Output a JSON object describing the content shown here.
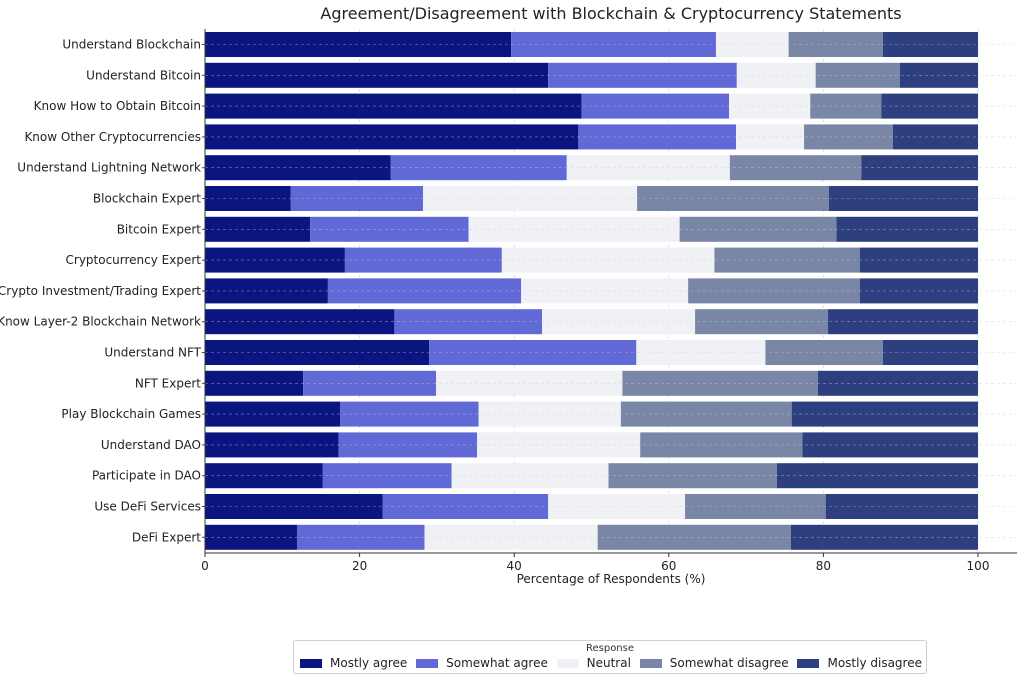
{
  "chart_data": {
    "type": "bar",
    "orientation": "horizontal",
    "stacked": true,
    "title": "Agreement/Disagreement with Blockchain & Cryptocurrency Statements",
    "xlabel": "Percentage of Respondents (%)",
    "ylabel": "",
    "xlim": [
      0,
      100
    ],
    "xticks": [
      0,
      20,
      40,
      60,
      80,
      100
    ],
    "grid": true,
    "legend_title": "Response",
    "legend_position": "bottom",
    "categories": [
      "Understand Blockchain",
      "Understand Bitcoin",
      "Know How to Obtain Bitcoin",
      "Know Other Cryptocurrencies",
      "Understand Lightning Network",
      "Blockchain Expert",
      "Bitcoin Expert",
      "Cryptocurrency Expert",
      "Crypto Investment/Trading Expert",
      "Know Layer-2 Blockchain Network",
      "Understand NFT",
      "NFT Expert",
      "Play Blockchain Games",
      "Understand DAO",
      "Participate in DAO",
      "Use DeFi Services",
      "DeFi Expert"
    ],
    "series": [
      {
        "name": "Mostly agree",
        "color": "#0a1580",
        "values": [
          39.6,
          44.4,
          48.7,
          48.3,
          24.0,
          11.1,
          13.6,
          18.1,
          15.9,
          24.5,
          29.0,
          12.7,
          17.5,
          17.3,
          15.2,
          23.0,
          11.9
        ]
      },
      {
        "name": "Somewhat agree",
        "color": "#6069d6",
        "values": [
          26.5,
          24.4,
          19.1,
          20.4,
          22.8,
          17.1,
          20.5,
          20.3,
          25.0,
          19.1,
          26.8,
          17.2,
          17.9,
          17.9,
          16.7,
          21.4,
          16.5
        ]
      },
      {
        "name": "Neutral",
        "color": "#f0f1f4",
        "values": [
          9.4,
          10.2,
          10.5,
          8.8,
          21.1,
          27.7,
          27.3,
          27.5,
          21.6,
          19.8,
          16.7,
          24.1,
          18.4,
          21.1,
          20.3,
          17.7,
          22.4
        ]
      },
      {
        "name": "Somewhat disagree",
        "color": "#7986a6",
        "values": [
          12.2,
          10.9,
          9.2,
          11.5,
          17.0,
          24.8,
          20.3,
          18.8,
          22.2,
          17.2,
          15.2,
          25.3,
          22.1,
          21.0,
          21.8,
          18.2,
          25.0
        ]
      },
      {
        "name": "Mostly disagree",
        "color": "#2d3f7e",
        "values": [
          12.3,
          10.1,
          12.5,
          11.0,
          15.1,
          19.3,
          18.3,
          15.3,
          15.3,
          19.4,
          12.3,
          20.7,
          24.1,
          22.7,
          26.0,
          19.7,
          24.2
        ]
      }
    ]
  }
}
